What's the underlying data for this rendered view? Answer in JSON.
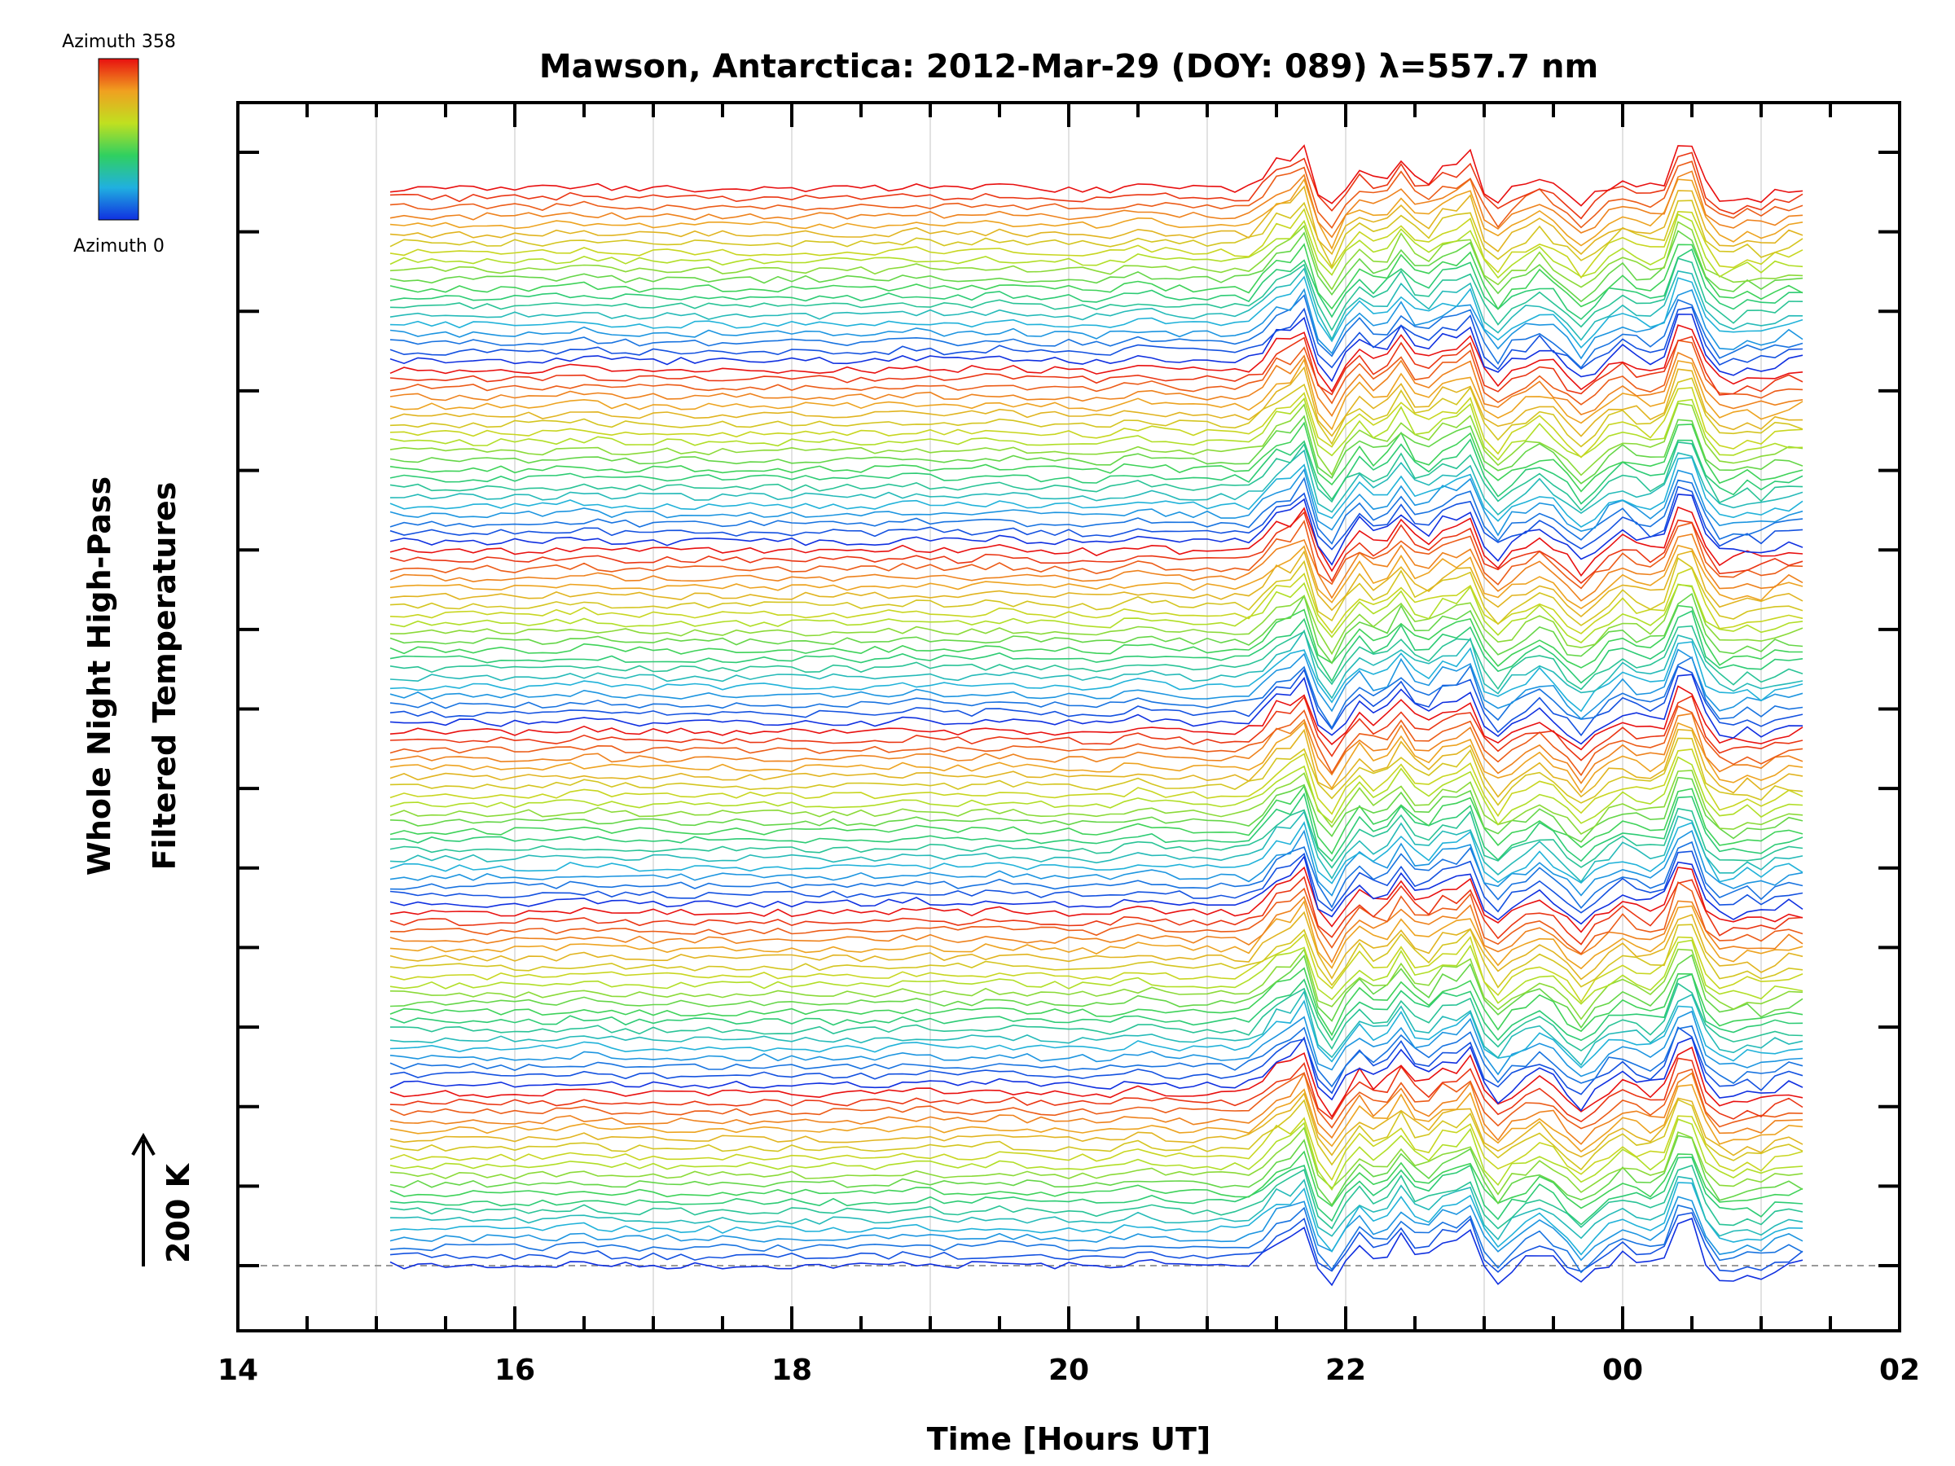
{
  "chart_data": {
    "type": "line",
    "title": "Mawson, Antarctica: 2012-Mar-29 (DOY: 089) λ=557.7 nm",
    "xlabel": "Time [Hours UT]",
    "ylabel": [
      "Whole Night High-Pass",
      "Filtered Temperatures"
    ],
    "x_tick_labels": [
      "14",
      "16",
      "18",
      "20",
      "22",
      "00",
      "02"
    ],
    "x_tick_hours": [
      14,
      16,
      18,
      20,
      22,
      24,
      26
    ],
    "xlim": [
      14,
      26
    ],
    "data_time_range": [
      15.1,
      25.3
    ],
    "scale_bar": {
      "label": "200 K",
      "value_K": 200,
      "direction": "up"
    },
    "legend": {
      "type": "colorbar",
      "placement": "top-left",
      "top_label": "Azimuth 358",
      "bottom_label": "Azimuth 0",
      "colors": [
        "#1030e0",
        "#20b0e0",
        "#30d060",
        "#c0e020",
        "#f0a020",
        "#e81010"
      ],
      "azimuth_range": [
        0,
        358
      ]
    },
    "y_ticks_count": 15,
    "grid": "vertical lines every hour",
    "baseline": "dashed",
    "series_layout": "stacked offset traces, azimuth color cycle repeated 6 times",
    "traces_count": 120,
    "common_events": [
      {
        "time": 21.5,
        "amplitude": 0.55
      },
      {
        "time": 21.7,
        "amplitude": 1.0
      },
      {
        "time": 21.85,
        "amplitude": -0.55
      },
      {
        "time": 22.1,
        "amplitude": 0.45
      },
      {
        "time": 22.4,
        "amplitude": 0.7
      },
      {
        "time": 22.7,
        "amplitude": 0.5
      },
      {
        "time": 22.9,
        "amplitude": 0.8
      },
      {
        "time": 23.05,
        "amplitude": -0.45
      },
      {
        "time": 23.4,
        "amplitude": 0.3
      },
      {
        "time": 23.7,
        "amplitude": -0.45
      },
      {
        "time": 24.0,
        "amplitude": 0.25
      },
      {
        "time": 24.45,
        "amplitude": 1.2
      },
      {
        "time": 24.75,
        "amplitude": -0.3
      },
      {
        "time": 25.0,
        "amplitude": -0.2
      },
      {
        "time": 20.5,
        "amplitude": 0.35
      },
      {
        "time": 20.3,
        "amplitude": -0.15
      },
      {
        "time": 19.5,
        "amplitude": 0.2
      },
      {
        "time": 18.9,
        "amplitude": 0.2
      },
      {
        "time": 16.5,
        "amplitude": 0.2
      }
    ]
  }
}
